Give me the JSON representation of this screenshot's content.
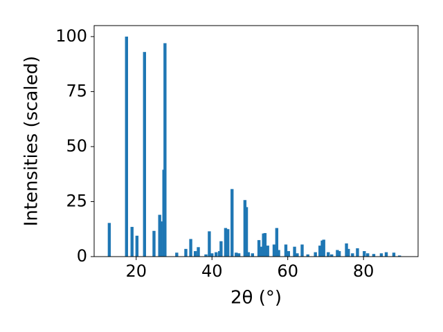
{
  "chart_data": {
    "type": "bar",
    "xlabel": "2θ (°)",
    "ylabel": "Intensities (scaled)",
    "color": "#1f77b4",
    "x": [
      12.9,
      17.45,
      18.9,
      20.2,
      22.2,
      24.7,
      26.2,
      26.5,
      27.3,
      27.6,
      30.7,
      33.1,
      34.4,
      35.6,
      36.4,
      38.4,
      39.3,
      40.0,
      41.1,
      42.0,
      42.4,
      43.6,
      44.2,
      45.3,
      46.4,
      47.1,
      48.7,
      49.1,
      49.6,
      50.7,
      52.4,
      52.9,
      53.6,
      54.0,
      54.7,
      56.4,
      57.1,
      57.6,
      59.5,
      60.2,
      61.8,
      62.5,
      63.8,
      65.3,
      67.3,
      68.5,
      69.1,
      69.5,
      70.7,
      71.6,
      73.1,
      73.6,
      75.5,
      76.0,
      77.1,
      78.4,
      80.2,
      81.1,
      82.7,
      84.7,
      86.0,
      88.0,
      89.5
    ],
    "values": [
      15.3,
      100,
      13.5,
      9.5,
      93,
      11.7,
      19,
      16,
      39.5,
      97,
      1.8,
      3.5,
      8,
      2.5,
      4.3,
      1,
      11.5,
      1.5,
      2,
      2.5,
      7,
      13,
      12.5,
      30.7,
      1.8,
      1.5,
      25.7,
      22.5,
      2,
      1.5,
      7.5,
      4.5,
      10.5,
      10.7,
      5,
      5.5,
      13,
      3,
      5.5,
      2.5,
      4.5,
      1.5,
      5.5,
      1,
      2,
      5,
      7.3,
      7.7,
      2,
      1,
      3,
      2.5,
      6,
      3.5,
      1.5,
      3.8,
      2.5,
      1.5,
      1.2,
      1.5,
      2,
      1.8,
      0.5
    ],
    "xlim": [
      8.9,
      94.4
    ],
    "ylim": [
      0,
      105
    ],
    "xticks": [
      20,
      40,
      60,
      80
    ],
    "yticks": [
      0,
      25,
      50,
      75,
      100
    ]
  }
}
